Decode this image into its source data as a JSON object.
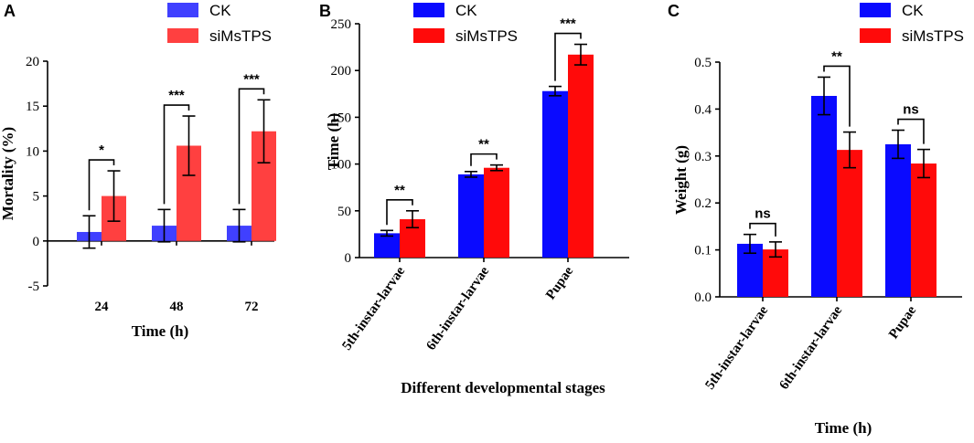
{
  "colors": {
    "ck_a": "#4040ff",
    "si_a": "#ff4040",
    "ck": "#0a0aff",
    "si": "#ff0a0a"
  },
  "chart_data": [
    {
      "panel": "A",
      "type": "bar",
      "title": "",
      "xlabel": "Time (h)",
      "ylabel": "Mortality (%)",
      "ylim": [
        -5,
        20
      ],
      "yticks": [
        -5,
        0,
        5,
        10,
        15,
        20
      ],
      "categories": [
        "24",
        "48",
        "72"
      ],
      "series": [
        {
          "name": "CK",
          "values": [
            1.0,
            1.7,
            1.7
          ],
          "errors": [
            1.8,
            1.8,
            1.8
          ]
        },
        {
          "name": "siMsTPS",
          "values": [
            5.0,
            10.6,
            12.2
          ],
          "errors": [
            2.8,
            3.3,
            3.5
          ]
        }
      ],
      "significance": [
        "*",
        "***",
        "***"
      ],
      "legend": [
        "CK",
        "siMsTPS"
      ]
    },
    {
      "panel": "B",
      "type": "bar",
      "title": "",
      "xlabel": "Different developmental stages",
      "ylabel": "Time (h)",
      "ylim": [
        0,
        250
      ],
      "yticks": [
        0,
        50,
        100,
        150,
        200,
        250
      ],
      "categories": [
        "5th-instar-larvae",
        "6th-instar-larvae",
        "Pupae"
      ],
      "series": [
        {
          "name": "CK",
          "values": [
            26,
            89,
            178
          ],
          "errors": [
            3,
            3,
            5
          ]
        },
        {
          "name": "siMsTPS",
          "values": [
            41,
            96,
            217
          ],
          "errors": [
            9,
            3,
            11
          ]
        }
      ],
      "significance": [
        "**",
        "**",
        "***"
      ],
      "legend": [
        "CK",
        "siMsTPS"
      ]
    },
    {
      "panel": "C",
      "type": "bar",
      "title": "",
      "xlabel": "Time (h)",
      "ylabel": "Weight (g)",
      "ylim": [
        0,
        0.5
      ],
      "yticks": [
        "0.0",
        "0.1",
        "0.2",
        "0.3",
        "0.4",
        "0.5"
      ],
      "categories": [
        "5th-instar-larvae",
        "6th-instar-larvae",
        "Pupae"
      ],
      "series": [
        {
          "name": "CK",
          "values": [
            0.113,
            0.428,
            0.325
          ],
          "errors": [
            0.02,
            0.04,
            0.03
          ]
        },
        {
          "name": "siMsTPS",
          "values": [
            0.101,
            0.313,
            0.284
          ],
          "errors": [
            0.016,
            0.038,
            0.03
          ]
        }
      ],
      "significance": [
        "ns",
        "**",
        "ns"
      ],
      "legend": [
        "CK",
        "siMsTPS"
      ]
    }
  ]
}
